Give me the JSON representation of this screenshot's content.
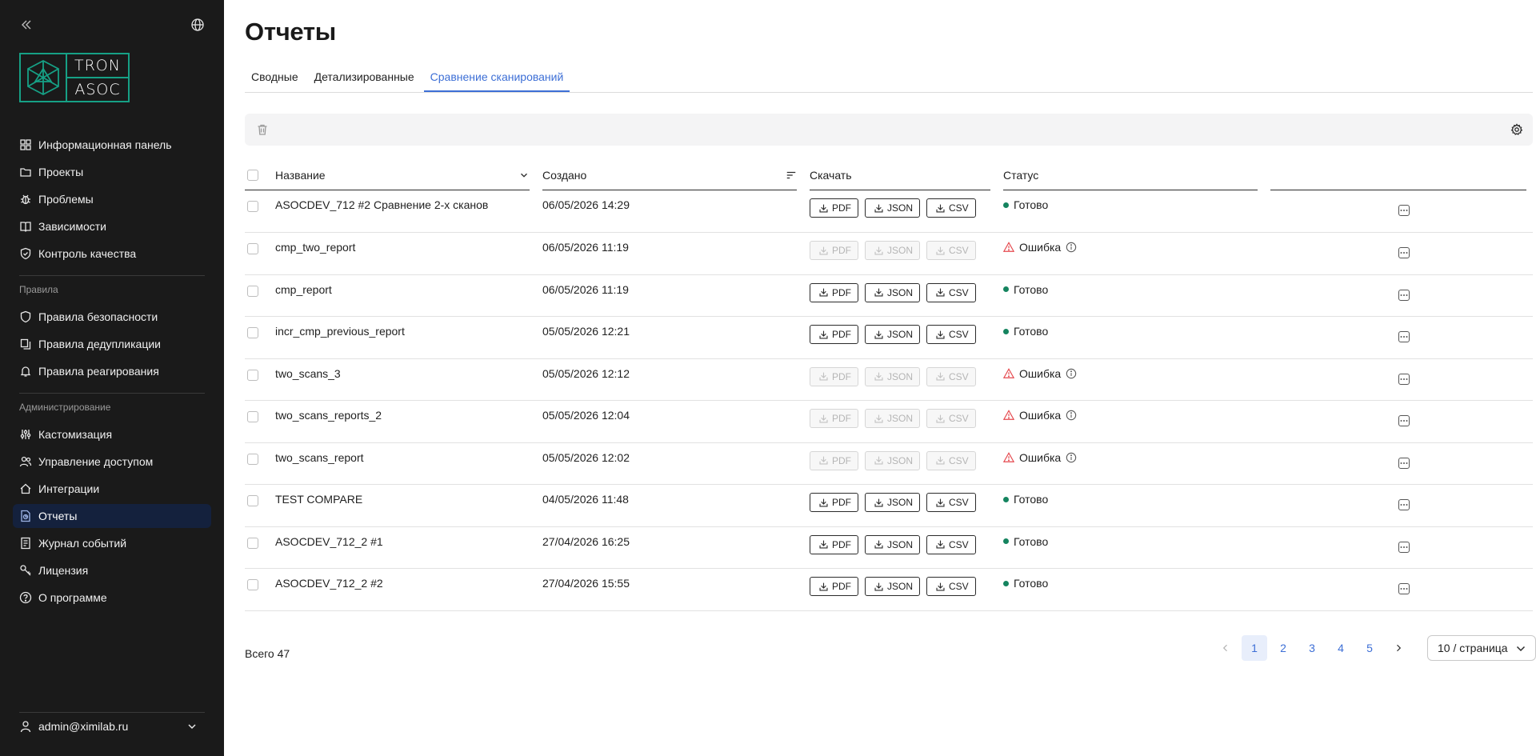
{
  "app": {
    "logo_line1": "TRON",
    "logo_line2": "ASOC",
    "brand_color": "#16a085"
  },
  "sidebar": {
    "main_items": [
      {
        "label": "Информационная панель",
        "icon": "dashboard-icon"
      },
      {
        "label": "Проекты",
        "icon": "folder-icon"
      },
      {
        "label": "Проблемы",
        "icon": "bug-icon"
      },
      {
        "label": "Зависимости",
        "icon": "book-icon"
      },
      {
        "label": "Контроль качества",
        "icon": "shield-check-icon"
      }
    ],
    "section_rules": "Правила",
    "rules_items": [
      {
        "label": "Правила безопасности",
        "icon": "shield-icon"
      },
      {
        "label": "Правила дедупликации",
        "icon": "copy-icon"
      },
      {
        "label": "Правила реагирования",
        "icon": "bell-icon"
      }
    ],
    "section_admin": "Администрирование",
    "admin_items": [
      {
        "label": "Кастомизация",
        "icon": "sliders-icon"
      },
      {
        "label": "Управление доступом",
        "icon": "users-icon"
      },
      {
        "label": "Интеграции",
        "icon": "integration-icon"
      },
      {
        "label": "Отчеты",
        "icon": "report-icon",
        "active": true
      },
      {
        "label": "Журнал событий",
        "icon": "log-icon"
      },
      {
        "label": "Лицензия",
        "icon": "key-icon"
      },
      {
        "label": "О программе",
        "icon": "help-icon"
      }
    ],
    "user": "admin@ximilab.ru"
  },
  "page": {
    "title": "Отчеты",
    "tabs": [
      "Сводные",
      "Детализированные",
      "Сравнение сканирований"
    ],
    "active_tab": 2,
    "accent_color": "#3d6fd6"
  },
  "table": {
    "headers": {
      "name": "Название",
      "created": "Создано",
      "download": "Скачать",
      "status": "Статус"
    },
    "download_labels": {
      "pdf": "PDF",
      "json": "JSON",
      "csv": "CSV"
    },
    "rows": [
      {
        "name": "ASOCDEV_712 #2 Сравнение 2-х сканов",
        "created": "06/05/2026 14:29",
        "status": "Готово",
        "ok": true
      },
      {
        "name": "cmp_two_report",
        "created": "06/05/2026 11:19",
        "status": "Ошибка",
        "ok": false
      },
      {
        "name": "cmp_report",
        "created": "06/05/2026 11:19",
        "status": "Готово",
        "ok": true
      },
      {
        "name": "incr_cmp_previous_report",
        "created": "05/05/2026 12:21",
        "status": "Готово",
        "ok": true
      },
      {
        "name": "two_scans_3",
        "created": "05/05/2026 12:12",
        "status": "Ошибка",
        "ok": false
      },
      {
        "name": "two_scans_reports_2",
        "created": "05/05/2026 12:04",
        "status": "Ошибка",
        "ok": false
      },
      {
        "name": "two_scans_report",
        "created": "05/05/2026 12:02",
        "status": "Ошибка",
        "ok": false
      },
      {
        "name": "TEST COMPARE",
        "created": "04/05/2026 11:48",
        "status": "Готово",
        "ok": true
      },
      {
        "name": "ASOCDEV_712_2 #1",
        "created": "27/04/2026 16:25",
        "status": "Готово",
        "ok": true
      },
      {
        "name": "ASOCDEV_712_2 #2",
        "created": "27/04/2026 15:55",
        "status": "Готово",
        "ok": true
      }
    ],
    "status_colors": {
      "ok": "#15845f",
      "error": "#e5484d"
    }
  },
  "footer": {
    "total": "Всего 47",
    "pages": [
      "1",
      "2",
      "3",
      "4",
      "5"
    ],
    "current_page": "1",
    "page_size": "10 / страница"
  }
}
